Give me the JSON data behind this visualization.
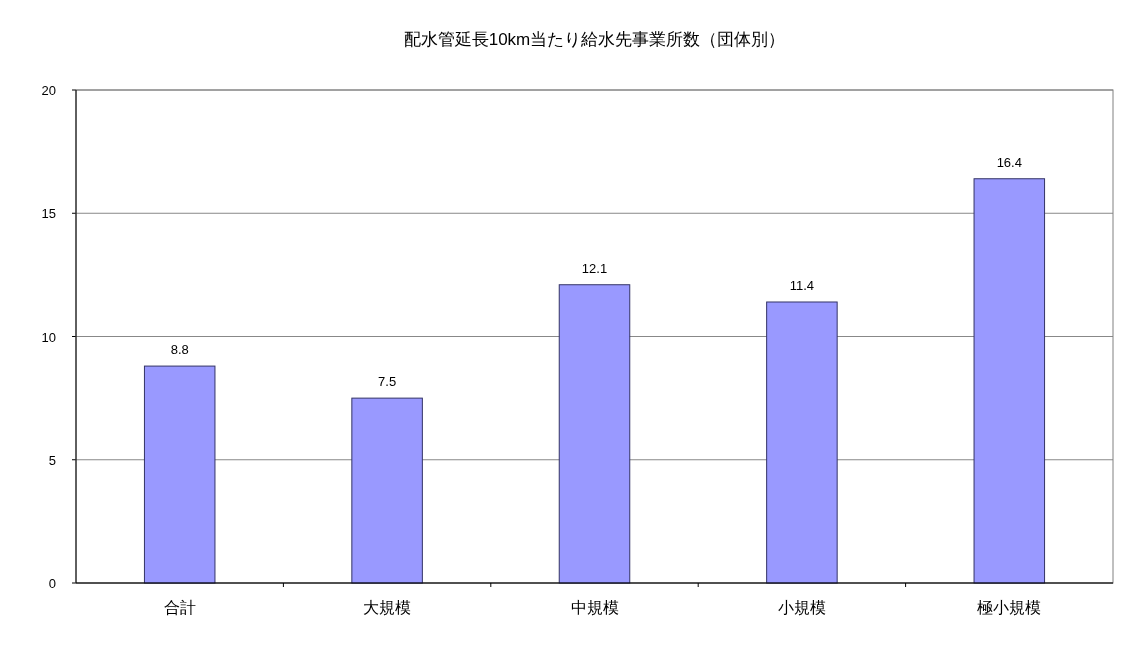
{
  "chart_data": {
    "type": "bar",
    "title": "配水管延長10km当たり給水先事業所数（団体別）",
    "categories": [
      "合計",
      "大規模",
      "中規模",
      "小規模",
      "極小規模"
    ],
    "values": [
      8.8,
      7.5,
      12.1,
      11.4,
      16.4
    ],
    "color": "#9999ff",
    "ylim": [
      0,
      20
    ],
    "yticks": [
      0,
      5,
      10,
      15,
      20
    ],
    "grid": "y",
    "data_labels": true
  }
}
